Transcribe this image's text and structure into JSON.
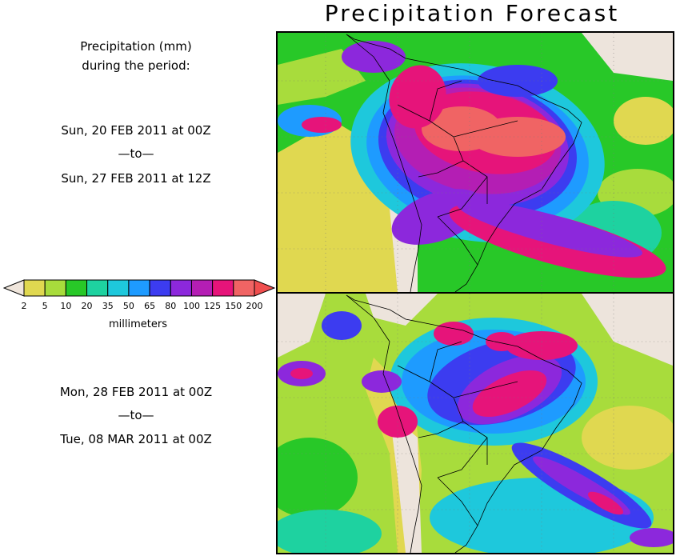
{
  "title": "Precipitation Forecast",
  "description": {
    "line1": "Precipitation (mm)",
    "line2": "during the period:"
  },
  "periods": [
    {
      "start": "Sun, 20 FEB 2011 at 00Z",
      "sep": "—to—",
      "end": "Sun, 27 FEB 2011 at 12Z"
    },
    {
      "start": "Mon, 28 FEB 2011 at 00Z",
      "sep": "—to—",
      "end": "Tue, 08 MAR 2011 at 00Z"
    }
  ],
  "legend": {
    "units": "millimeters",
    "below_color": "#f0e6dc",
    "above_color": "#f04e4e",
    "bins": [
      {
        "color": "#e0d850"
      },
      {
        "color": "#a8dc3c"
      },
      {
        "color": "#28c828"
      },
      {
        "color": "#1ed2a0"
      },
      {
        "color": "#1ec8dc"
      },
      {
        "color": "#1e9bff"
      },
      {
        "color": "#3c3cf0"
      },
      {
        "color": "#8c28dc"
      },
      {
        "color": "#b41eb4"
      },
      {
        "color": "#e6147a"
      },
      {
        "color": "#f06464"
      }
    ],
    "tick_labels": [
      "2",
      "5",
      "10",
      "20",
      "35",
      "50",
      "65",
      "80",
      "100",
      "125",
      "150",
      "200"
    ]
  },
  "map_colors": {
    "ocean_dry": "#ede4dc",
    "land_dry": "#e6dfd4",
    "light": "#e0d850",
    "low": "#a8dc3c",
    "mid": "#28c828",
    "teal": "#1ed2a0",
    "cyan": "#1ec8dc",
    "blue": "#1e9bff",
    "dblue": "#3c3cf0",
    "purple": "#8c28dc",
    "magenta": "#b41eb4",
    "pink": "#e6147a",
    "red": "#f06464"
  }
}
